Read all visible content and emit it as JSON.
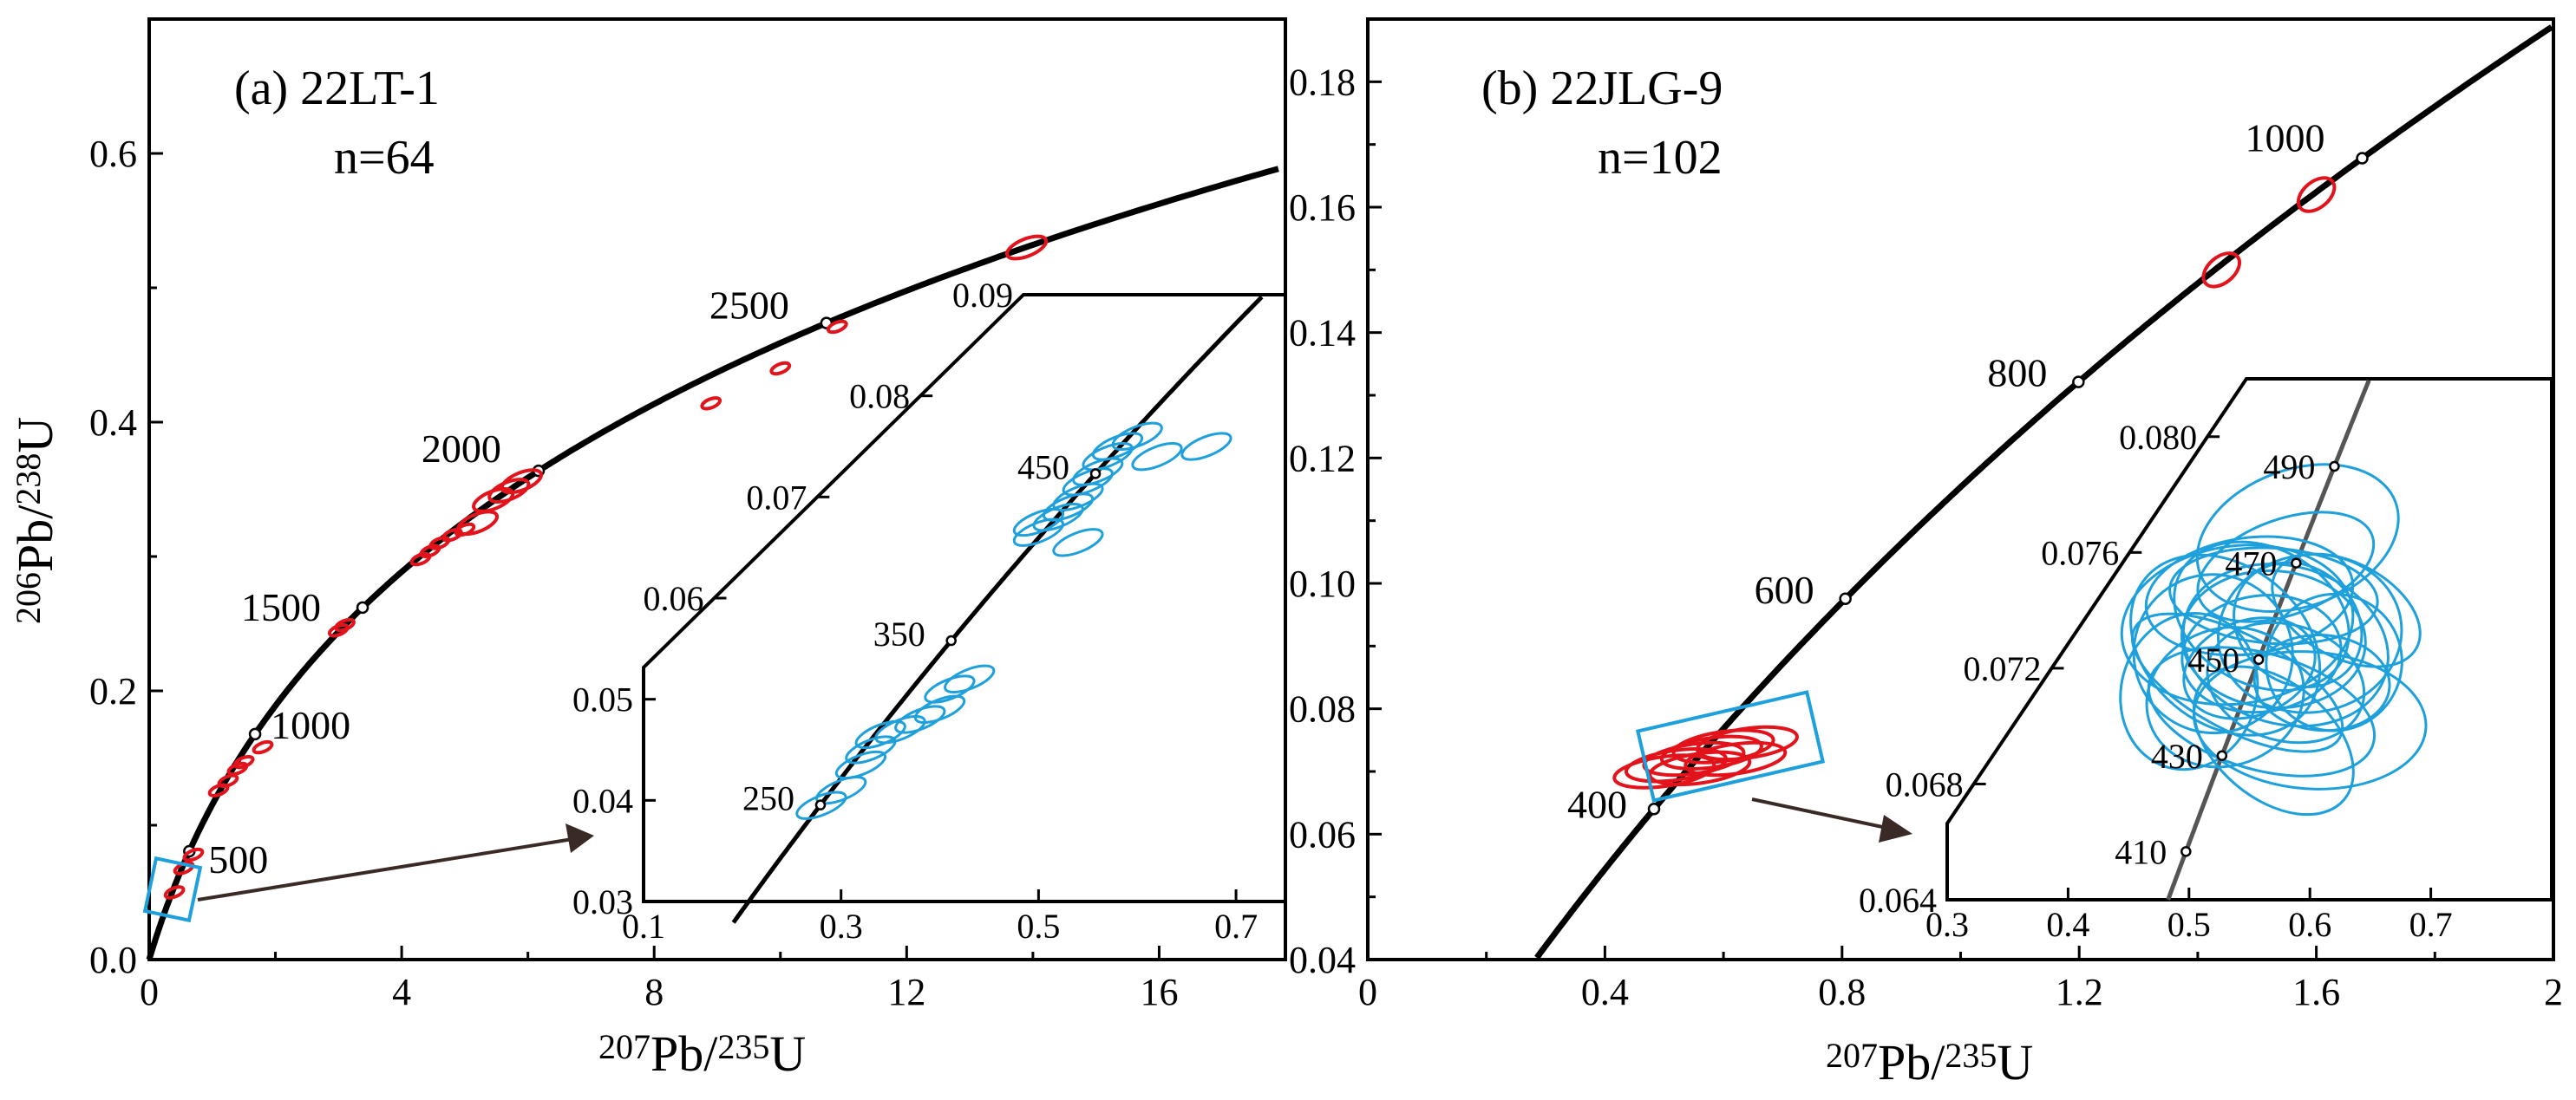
{
  "chart_data": [
    {
      "type": "scatter",
      "panel_label": "(a) 22LT-1",
      "sample": "22LT-1",
      "n_label": "n=64",
      "xlabel": {
        "sup1": "207",
        "base1": "Pb/",
        "sup2": "235",
        "base2": "U"
      },
      "ylabel": {
        "sup1": "206",
        "base1": "Pb/",
        "sup2": "238",
        "base2": "U"
      },
      "xlim": [
        0,
        18
      ],
      "ylim": [
        0,
        0.7
      ],
      "x_ticks": [
        "0",
        "4",
        "8",
        "12",
        "16"
      ],
      "y_ticks": [
        "0.0",
        "0.2",
        "0.4",
        "0.6"
      ],
      "concordia_age_labels": [
        "500",
        "1000",
        "1500",
        "2000",
        "2500"
      ],
      "red_analyses": [
        {
          "x": 0.4,
          "y": 0.05
        },
        {
          "x": 0.55,
          "y": 0.068
        },
        {
          "x": 0.7,
          "y": 0.078
        },
        {
          "x": 1.1,
          "y": 0.126
        },
        {
          "x": 1.25,
          "y": 0.133
        },
        {
          "x": 1.4,
          "y": 0.142
        },
        {
          "x": 1.5,
          "y": 0.147
        },
        {
          "x": 1.8,
          "y": 0.158
        },
        {
          "x": 3.0,
          "y": 0.245
        },
        {
          "x": 3.1,
          "y": 0.249
        },
        {
          "x": 4.3,
          "y": 0.298
        },
        {
          "x": 4.45,
          "y": 0.304
        },
        {
          "x": 4.6,
          "y": 0.31
        },
        {
          "x": 4.8,
          "y": 0.316
        },
        {
          "x": 5.0,
          "y": 0.32
        },
        {
          "x": 5.2,
          "y": 0.325
        },
        {
          "x": 5.45,
          "y": 0.342
        },
        {
          "x": 5.7,
          "y": 0.349
        },
        {
          "x": 5.9,
          "y": 0.356
        },
        {
          "x": 8.9,
          "y": 0.414
        },
        {
          "x": 10.0,
          "y": 0.44
        },
        {
          "x": 10.9,
          "y": 0.471
        },
        {
          "x": 13.9,
          "y": 0.53
        }
      ],
      "inset": {
        "xlim": [
          0.1,
          0.75
        ],
        "ylim": [
          0.03,
          0.09
        ],
        "x_ticks": [
          "0.1",
          "0.3",
          "0.5",
          "0.7"
        ],
        "y_ticks": [
          "0.03",
          "0.04",
          "0.05",
          "0.06",
          "0.07",
          "0.08",
          "0.09"
        ],
        "age_labels": [
          "250",
          "350",
          "450"
        ],
        "blue_analyses": [
          {
            "x": 0.28,
            "y": 0.0395
          },
          {
            "x": 0.3,
            "y": 0.041
          },
          {
            "x": 0.32,
            "y": 0.0435
          },
          {
            "x": 0.33,
            "y": 0.045
          },
          {
            "x": 0.34,
            "y": 0.0465
          },
          {
            "x": 0.36,
            "y": 0.047
          },
          {
            "x": 0.38,
            "y": 0.048
          },
          {
            "x": 0.4,
            "y": 0.049
          },
          {
            "x": 0.41,
            "y": 0.051
          },
          {
            "x": 0.43,
            "y": 0.052
          },
          {
            "x": 0.5,
            "y": 0.0665
          },
          {
            "x": 0.52,
            "y": 0.068
          },
          {
            "x": 0.53,
            "y": 0.069
          },
          {
            "x": 0.54,
            "y": 0.07
          },
          {
            "x": 0.55,
            "y": 0.0715
          },
          {
            "x": 0.56,
            "y": 0.0725
          },
          {
            "x": 0.57,
            "y": 0.074
          },
          {
            "x": 0.58,
            "y": 0.075
          },
          {
            "x": 0.6,
            "y": 0.076
          },
          {
            "x": 0.62,
            "y": 0.074
          },
          {
            "x": 0.67,
            "y": 0.075
          },
          {
            "x": 0.54,
            "y": 0.0655
          },
          {
            "x": 0.5,
            "y": 0.0675
          }
        ]
      }
    },
    {
      "type": "scatter",
      "panel_label": "(b) 22JLG-9",
      "sample": "22JLG-9",
      "n_label": "n=102",
      "xlabel": {
        "sup1": "207",
        "base1": "Pb/",
        "sup2": "235",
        "base2": "U"
      },
      "xlim": [
        0,
        2
      ],
      "ylim": [
        0.04,
        0.19
      ],
      "x_ticks": [
        "0",
        "0.4",
        "0.8",
        "1.2",
        "1.6",
        "2"
      ],
      "y_ticks": [
        "0.04",
        "0.06",
        "0.08",
        "0.10",
        "0.12",
        "0.14",
        "0.16",
        "0.18"
      ],
      "concordia_age_labels": [
        "400",
        "600",
        "800",
        "1000"
      ],
      "red_analyses": [
        {
          "x": 1.44,
          "y": 0.15
        },
        {
          "x": 1.6,
          "y": 0.162
        },
        {
          "x": 0.52,
          "y": 0.071
        },
        {
          "x": 0.55,
          "y": 0.072
        },
        {
          "x": 0.58,
          "y": 0.073
        },
        {
          "x": 0.6,
          "y": 0.074
        },
        {
          "x": 0.62,
          "y": 0.072
        },
        {
          "x": 0.5,
          "y": 0.07
        },
        {
          "x": 0.56,
          "y": 0.0705
        },
        {
          "x": 0.64,
          "y": 0.0745
        }
      ],
      "inset": {
        "xlim": [
          0.3,
          0.8
        ],
        "ylim": [
          0.064,
          0.082
        ],
        "x_ticks": [
          "0.3",
          "0.4",
          "0.5",
          "0.6",
          "0.7"
        ],
        "y_ticks": [
          "0.064",
          "0.068",
          "0.072",
          "0.076",
          "0.080"
        ],
        "age_labels": [
          "410",
          "430",
          "450",
          "470",
          "490"
        ],
        "blue_analyses": [
          {
            "x": 0.55,
            "y": 0.072
          },
          {
            "x": 0.56,
            "y": 0.0725
          },
          {
            "x": 0.57,
            "y": 0.073
          },
          {
            "x": 0.58,
            "y": 0.0728
          },
          {
            "x": 0.54,
            "y": 0.0715
          },
          {
            "x": 0.59,
            "y": 0.0735
          },
          {
            "x": 0.53,
            "y": 0.071
          },
          {
            "x": 0.6,
            "y": 0.0732
          },
          {
            "x": 0.57,
            "y": 0.0745
          },
          {
            "x": 0.56,
            "y": 0.0705
          },
          {
            "x": 0.62,
            "y": 0.0722
          },
          {
            "x": 0.52,
            "y": 0.0725
          },
          {
            "x": 0.58,
            "y": 0.0755
          },
          {
            "x": 0.55,
            "y": 0.0745
          },
          {
            "x": 0.6,
            "y": 0.0702
          },
          {
            "x": 0.5,
            "y": 0.0712
          },
          {
            "x": 0.63,
            "y": 0.074
          },
          {
            "x": 0.57,
            "y": 0.0695
          },
          {
            "x": 0.59,
            "y": 0.0765
          },
          {
            "x": 0.54,
            "y": 0.0735
          },
          {
            "x": 0.61,
            "y": 0.0715
          },
          {
            "x": 0.58,
            "y": 0.0715
          },
          {
            "x": 0.56,
            "y": 0.0738
          },
          {
            "x": 0.53,
            "y": 0.0728
          }
        ]
      }
    }
  ]
}
